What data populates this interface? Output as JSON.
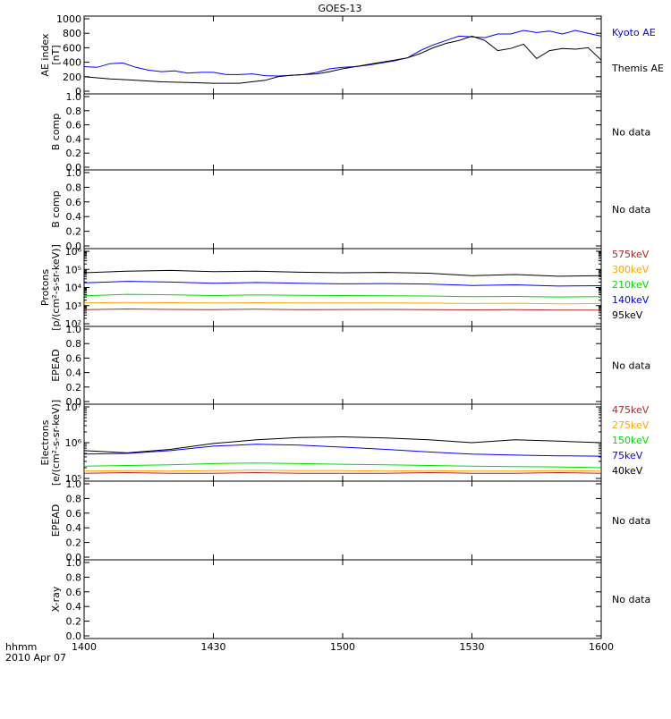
{
  "title": "GOES-13",
  "xaxis": {
    "ticks": [
      "1400",
      "1430",
      "1500",
      "1530",
      "1600"
    ],
    "range_min": [
      0,
      120
    ],
    "corner_label_1": "hhmm",
    "corner_label_2": "2010 Apr 07"
  },
  "panels": [
    {
      "id": "ae",
      "ylabel_lines": [
        "AE index",
        "[nT]"
      ],
      "scale": "linear",
      "ylim": [
        0,
        1000
      ],
      "ticks": [
        "0",
        "200",
        "400",
        "600",
        "800",
        "1000"
      ],
      "tick_values": [
        0,
        200,
        400,
        600,
        800,
        1000
      ],
      "no_data": false,
      "series": [
        {
          "name": "Kyoto AE",
          "color": "#0000ff",
          "x": [
            0,
            3,
            6,
            9,
            12,
            15,
            18,
            21,
            24,
            27,
            30,
            33,
            36,
            39,
            42,
            45,
            48,
            51,
            54,
            57,
            60,
            63,
            66,
            69,
            72,
            75,
            78,
            81,
            84,
            87,
            90,
            93,
            96,
            99,
            102,
            105,
            108,
            111,
            114,
            117,
            120
          ],
          "y": [
            340,
            330,
            380,
            390,
            330,
            290,
            270,
            280,
            250,
            260,
            260,
            230,
            230,
            240,
            215,
            210,
            220,
            230,
            260,
            310,
            330,
            340,
            360,
            390,
            420,
            460,
            560,
            640,
            700,
            760,
            750,
            740,
            790,
            790,
            840,
            810,
            830,
            790,
            840,
            800,
            760
          ]
        },
        {
          "name": "Themis AE",
          "color": "#000000",
          "x": [
            0,
            6,
            12,
            18,
            24,
            30,
            36,
            42,
            45,
            48,
            51,
            54,
            57,
            60,
            63,
            66,
            69,
            72,
            75,
            78,
            81,
            84,
            87,
            90,
            93,
            96,
            99,
            102,
            105,
            108,
            111,
            114,
            117,
            120
          ],
          "y": [
            200,
            170,
            150,
            130,
            120,
            110,
            110,
            150,
            200,
            220,
            230,
            240,
            270,
            310,
            340,
            370,
            400,
            430,
            460,
            520,
            600,
            660,
            700,
            760,
            700,
            560,
            590,
            650,
            450,
            560,
            590,
            580,
            600,
            430
          ]
        }
      ]
    },
    {
      "id": "bcomp1",
      "ylabel_lines": [
        "B comp"
      ],
      "scale": "linear",
      "ylim": [
        0,
        1
      ],
      "ticks": [
        "0.0",
        "0.2",
        "0.4",
        "0.6",
        "0.8",
        "1.0"
      ],
      "tick_values": [
        0,
        0.2,
        0.4,
        0.6,
        0.8,
        1.0
      ],
      "no_data": true,
      "no_data_text": "No data",
      "series": []
    },
    {
      "id": "bcomp2",
      "ylabel_lines": [
        "B comp"
      ],
      "scale": "linear",
      "ylim": [
        0,
        1
      ],
      "ticks": [
        "0.0",
        "0.2",
        "0.4",
        "0.6",
        "0.8",
        "1.0"
      ],
      "tick_values": [
        0,
        0.2,
        0.4,
        0.6,
        0.8,
        1.0
      ],
      "no_data": true,
      "no_data_text": "No data",
      "series": []
    },
    {
      "id": "protons",
      "ylabel_lines": [
        "Protons",
        "[p/(cm²-s-sr-keV)]"
      ],
      "scale": "log",
      "ylim": [
        100,
        1000000
      ],
      "ticks": [
        "10²",
        "10³",
        "10⁴",
        "10⁵",
        "10⁶"
      ],
      "tick_values": [
        100,
        1000,
        10000,
        100000,
        1000000
      ],
      "no_data": false,
      "series": [
        {
          "name": "575keV",
          "color": "#a52a2a",
          "x": [
            0,
            10,
            20,
            30,
            40,
            50,
            60,
            70,
            80,
            90,
            100,
            110,
            120
          ],
          "y": [
            600,
            650,
            620,
            600,
            640,
            600,
            610,
            620,
            600,
            580,
            600,
            560,
            570
          ]
        },
        {
          "name": "300keV",
          "color": "#ffa500",
          "x": [
            0,
            10,
            20,
            30,
            40,
            50,
            60,
            70,
            80,
            90,
            100,
            110,
            120
          ],
          "y": [
            1400,
            1500,
            1450,
            1400,
            1450,
            1400,
            1400,
            1420,
            1380,
            1300,
            1350,
            1250,
            1300
          ]
        },
        {
          "name": "210keV",
          "color": "#00dd00",
          "x": [
            0,
            10,
            20,
            30,
            40,
            50,
            60,
            70,
            80,
            90,
            100,
            110,
            120
          ],
          "y": [
            3500,
            4200,
            4000,
            3600,
            3900,
            3700,
            3600,
            3500,
            3400,
            3100,
            3200,
            3000,
            3100
          ]
        },
        {
          "name": "140keV",
          "color": "#0000ff",
          "x": [
            0,
            10,
            20,
            30,
            40,
            50,
            60,
            70,
            80,
            90,
            100,
            110,
            120
          ],
          "y": [
            18000,
            22000,
            20000,
            17000,
            19000,
            17000,
            16000,
            16500,
            15500,
            13000,
            14000,
            12000,
            12500
          ]
        },
        {
          "name": "95keV",
          "color": "#000000",
          "x": [
            0,
            10,
            20,
            30,
            40,
            50,
            60,
            70,
            80,
            90,
            100,
            110,
            120
          ],
          "y": [
            65000,
            80000,
            88000,
            75000,
            80000,
            70000,
            65000,
            68000,
            62000,
            45000,
            52000,
            42000,
            45000
          ]
        }
      ]
    },
    {
      "id": "epead1",
      "ylabel_lines": [
        "EPEAD"
      ],
      "scale": "linear",
      "ylim": [
        0,
        1
      ],
      "ticks": [
        "0.0",
        "0.2",
        "0.4",
        "0.6",
        "0.8",
        "1.0"
      ],
      "tick_values": [
        0,
        0.2,
        0.4,
        0.6,
        0.8,
        1.0
      ],
      "no_data": true,
      "no_data_text": "No data",
      "series": []
    },
    {
      "id": "electrons",
      "ylabel_lines": [
        "Electrons",
        "[e/(cm²-s-sr-keV)]"
      ],
      "scale": "log",
      "ylim": [
        100000,
        10000000
      ],
      "ticks": [
        "10⁵",
        "10⁶",
        "10⁷"
      ],
      "tick_values": [
        100000,
        1000000,
        10000000
      ],
      "no_data": false,
      "series": [
        {
          "name": "475keV",
          "color": "#a52a2a",
          "x": [
            0,
            10,
            20,
            30,
            40,
            50,
            60,
            70,
            80,
            90,
            100,
            110,
            120
          ],
          "y": [
            140000,
            145000,
            140000,
            140000,
            145000,
            140000,
            140000,
            140000,
            145000,
            140000,
            140000,
            145000,
            140000
          ]
        },
        {
          "name": "275keV",
          "color": "#ffa500",
          "x": [
            0,
            10,
            20,
            30,
            40,
            50,
            60,
            70,
            80,
            90,
            100,
            110,
            120
          ],
          "y": [
            160000,
            165000,
            160000,
            165000,
            170000,
            165000,
            165000,
            160000,
            165000,
            160000,
            160000,
            165000,
            160000
          ]
        },
        {
          "name": "150keV",
          "color": "#00dd00",
          "x": [
            0,
            10,
            20,
            30,
            40,
            50,
            60,
            70,
            80,
            90,
            100,
            110,
            120
          ],
          "y": [
            220000,
            230000,
            240000,
            260000,
            270000,
            260000,
            250000,
            240000,
            230000,
            220000,
            215000,
            210000,
            200000
          ]
        },
        {
          "name": "75keV",
          "color": "#0000ff",
          "x": [
            0,
            10,
            20,
            30,
            40,
            50,
            60,
            70,
            80,
            90,
            100,
            110,
            120
          ],
          "y": [
            480000,
            500000,
            600000,
            800000,
            900000,
            850000,
            750000,
            650000,
            550000,
            480000,
            450000,
            430000,
            420000
          ]
        },
        {
          "name": "40keV",
          "color": "#000000",
          "x": [
            0,
            10,
            20,
            30,
            40,
            50,
            60,
            70,
            80,
            90,
            100,
            110,
            120
          ],
          "y": [
            600000,
            520000,
            650000,
            950000,
            1200000,
            1400000,
            1450000,
            1350000,
            1200000,
            1000000,
            1200000,
            1100000,
            1000000
          ]
        }
      ]
    },
    {
      "id": "epead2",
      "ylabel_lines": [
        "EPEAD"
      ],
      "scale": "linear",
      "ylim": [
        0,
        1
      ],
      "ticks": [
        "0.0",
        "0.2",
        "0.4",
        "0.6",
        "0.8",
        "1.0"
      ],
      "tick_values": [
        0,
        0.2,
        0.4,
        0.6,
        0.8,
        1.0
      ],
      "no_data": true,
      "no_data_text": "No data",
      "series": []
    },
    {
      "id": "xray",
      "ylabel_lines": [
        "X-ray"
      ],
      "scale": "linear",
      "ylim": [
        0,
        1
      ],
      "ticks": [
        "0.0",
        "0.2",
        "0.4",
        "0.6",
        "0.8",
        "1.0"
      ],
      "tick_values": [
        0,
        0.2,
        0.4,
        0.6,
        0.8,
        1.0
      ],
      "no_data": true,
      "no_data_text": "No data",
      "series": []
    }
  ],
  "chart_data": [
    {
      "type": "line",
      "title": "GOES-13",
      "ylabel": "AE index [nT]",
      "ylim": [
        0,
        1000
      ],
      "series": [
        {
          "name": "Kyoto AE"
        },
        {
          "name": "Themis AE"
        }
      ]
    },
    {
      "type": "line",
      "ylabel": "Protons [p/(cm²-s-sr-keV)]",
      "yscale": "log",
      "ylim": [
        100,
        1000000
      ],
      "series": [
        {
          "name": "575keV"
        },
        {
          "name": "300keV"
        },
        {
          "name": "210keV"
        },
        {
          "name": "140keV"
        },
        {
          "name": "95keV"
        }
      ]
    },
    {
      "type": "line",
      "ylabel": "Electrons [e/(cm²-s-sr-keV)]",
      "yscale": "log",
      "ylim": [
        100000,
        10000000
      ],
      "series": [
        {
          "name": "475keV"
        },
        {
          "name": "275keV"
        },
        {
          "name": "150keV"
        },
        {
          "name": "75keV"
        },
        {
          "name": "40keV"
        }
      ]
    }
  ]
}
